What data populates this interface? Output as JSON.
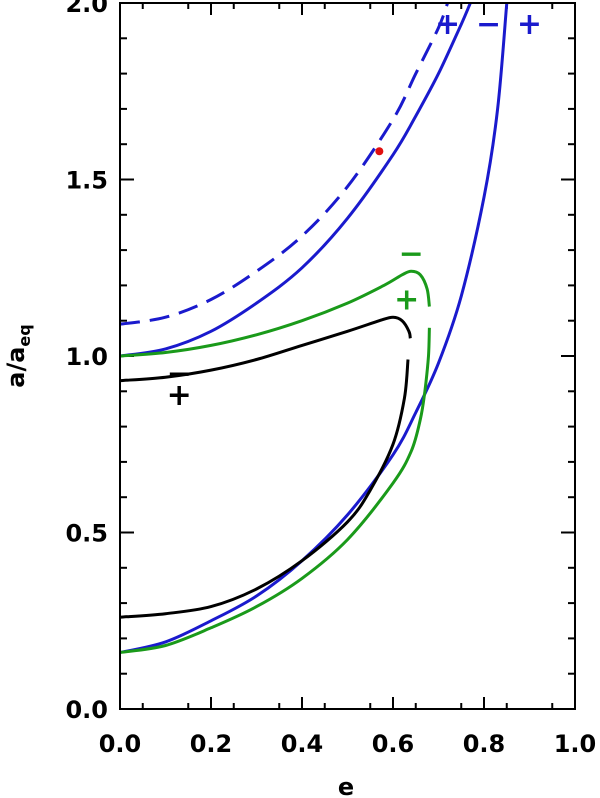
{
  "chart_data": {
    "type": "line",
    "xlabel": "e",
    "ylabel": "a/a",
    "ylabel_subscript": "eq",
    "xlim": [
      0.0,
      1.0
    ],
    "ylim": [
      0.0,
      2.0
    ],
    "x_ticks": [
      "0.0",
      "0.2",
      "0.4",
      "0.6",
      "0.8",
      "1.0"
    ],
    "y_ticks": [
      "0.0",
      "0.5",
      "1.0",
      "1.5",
      "2.0"
    ],
    "colors": {
      "blue": "#1a1acd",
      "green": "#1a9a1a",
      "black": "#000000",
      "red": "#e01010"
    },
    "series": [
      {
        "color": "blue",
        "style": "dashed",
        "points": [
          [
            0.0,
            1.09
          ],
          [
            0.1,
            1.11
          ],
          [
            0.2,
            1.16
          ],
          [
            0.3,
            1.24
          ],
          [
            0.4,
            1.34
          ],
          [
            0.5,
            1.48
          ],
          [
            0.6,
            1.67
          ],
          [
            0.65,
            1.8
          ],
          [
            0.7,
            1.93
          ],
          [
            0.72,
            2.0
          ]
        ]
      },
      {
        "color": "blue",
        "style": "solid",
        "points": [
          [
            0.0,
            1.0
          ],
          [
            0.1,
            1.02
          ],
          [
            0.2,
            1.07
          ],
          [
            0.3,
            1.15
          ],
          [
            0.4,
            1.25
          ],
          [
            0.5,
            1.39
          ],
          [
            0.6,
            1.57
          ],
          [
            0.65,
            1.68
          ],
          [
            0.7,
            1.8
          ],
          [
            0.75,
            1.94
          ],
          [
            0.77,
            2.0
          ]
        ]
      },
      {
        "color": "blue",
        "style": "solid",
        "points": [
          [
            0.0,
            0.16
          ],
          [
            0.1,
            0.19
          ],
          [
            0.2,
            0.25
          ],
          [
            0.3,
            0.32
          ],
          [
            0.4,
            0.42
          ],
          [
            0.5,
            0.55
          ],
          [
            0.6,
            0.72
          ],
          [
            0.65,
            0.84
          ],
          [
            0.7,
            0.98
          ],
          [
            0.75,
            1.17
          ],
          [
            0.8,
            1.45
          ],
          [
            0.83,
            1.7
          ],
          [
            0.85,
            2.0
          ]
        ]
      },
      {
        "color": "green",
        "style": "solid",
        "points": [
          [
            0.0,
            1.0
          ],
          [
            0.1,
            1.01
          ],
          [
            0.2,
            1.03
          ],
          [
            0.3,
            1.06
          ],
          [
            0.4,
            1.1
          ],
          [
            0.5,
            1.15
          ],
          [
            0.58,
            1.2
          ],
          [
            0.62,
            1.23
          ],
          [
            0.64,
            1.24
          ],
          [
            0.66,
            1.23
          ],
          [
            0.675,
            1.19
          ],
          [
            0.68,
            1.14
          ]
        ]
      },
      {
        "color": "green",
        "style": "solid",
        "points": [
          [
            0.68,
            1.08
          ],
          [
            0.678,
            1.0
          ],
          [
            0.67,
            0.9
          ],
          [
            0.66,
            0.82
          ],
          [
            0.64,
            0.73
          ],
          [
            0.6,
            0.64
          ],
          [
            0.5,
            0.48
          ],
          [
            0.4,
            0.37
          ],
          [
            0.3,
            0.29
          ],
          [
            0.2,
            0.23
          ],
          [
            0.1,
            0.18
          ],
          [
            0.0,
            0.16
          ]
        ]
      },
      {
        "color": "black",
        "style": "solid",
        "points": [
          [
            0.0,
            0.93
          ],
          [
            0.1,
            0.94
          ],
          [
            0.2,
            0.96
          ],
          [
            0.3,
            0.99
          ],
          [
            0.4,
            1.03
          ],
          [
            0.5,
            1.07
          ],
          [
            0.57,
            1.1
          ],
          [
            0.6,
            1.11
          ],
          [
            0.62,
            1.1
          ],
          [
            0.635,
            1.07
          ],
          [
            0.638,
            1.05
          ]
        ]
      },
      {
        "color": "black",
        "style": "solid",
        "points": [
          [
            0.633,
            0.99
          ],
          [
            0.625,
            0.88
          ],
          [
            0.6,
            0.75
          ],
          [
            0.55,
            0.62
          ],
          [
            0.5,
            0.53
          ],
          [
            0.4,
            0.42
          ],
          [
            0.3,
            0.34
          ],
          [
            0.2,
            0.29
          ],
          [
            0.1,
            0.27
          ],
          [
            0.0,
            0.26
          ]
        ]
      }
    ],
    "point": {
      "x": 0.57,
      "y": 1.58,
      "color": "red"
    },
    "annotations": [
      {
        "text": "+",
        "x": 0.72,
        "y": 1.94,
        "color": "blue"
      },
      {
        "text": "−",
        "x": 0.81,
        "y": 1.94,
        "color": "blue"
      },
      {
        "text": "+",
        "x": 0.9,
        "y": 1.94,
        "color": "blue"
      },
      {
        "text": "−",
        "x": 0.64,
        "y": 1.29,
        "color": "green"
      },
      {
        "text": "+",
        "x": 0.63,
        "y": 1.16,
        "color": "green"
      },
      {
        "text": "−",
        "x": 0.13,
        "y": 0.95,
        "color": "black"
      },
      {
        "text": "+",
        "x": 0.13,
        "y": 0.89,
        "color": "black"
      }
    ]
  }
}
